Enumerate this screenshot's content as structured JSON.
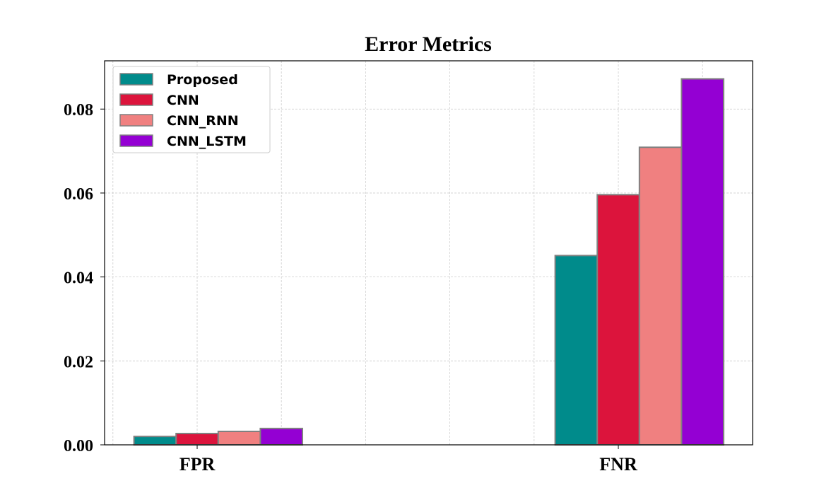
{
  "chart_data": {
    "type": "bar",
    "title": "Error Metrics",
    "categories": [
      "FPR",
      "FNR"
    ],
    "series": [
      {
        "name": "Proposed",
        "color": "#008b8b",
        "values": [
          0.002,
          0.0451
        ]
      },
      {
        "name": "CNN",
        "color": "#dc143c",
        "values": [
          0.0027,
          0.0596
        ]
      },
      {
        "name": "CNN_RNN",
        "color": "#f08080",
        "values": [
          0.0032,
          0.0709
        ]
      },
      {
        "name": "CNN_LSTM",
        "color": "#9400d3",
        "values": [
          0.0039,
          0.0872
        ]
      }
    ],
    "ylim": [
      0,
      0.0915
    ],
    "yticks": [
      {
        "value": 0,
        "label": "0.00"
      },
      {
        "value": 0.02,
        "label": "0.02"
      },
      {
        "value": 0.04,
        "label": "0.04"
      },
      {
        "value": 0.06,
        "label": "0.06"
      },
      {
        "value": 0.08,
        "label": "0.08"
      }
    ],
    "grid": true,
    "legend": "upper-left"
  }
}
